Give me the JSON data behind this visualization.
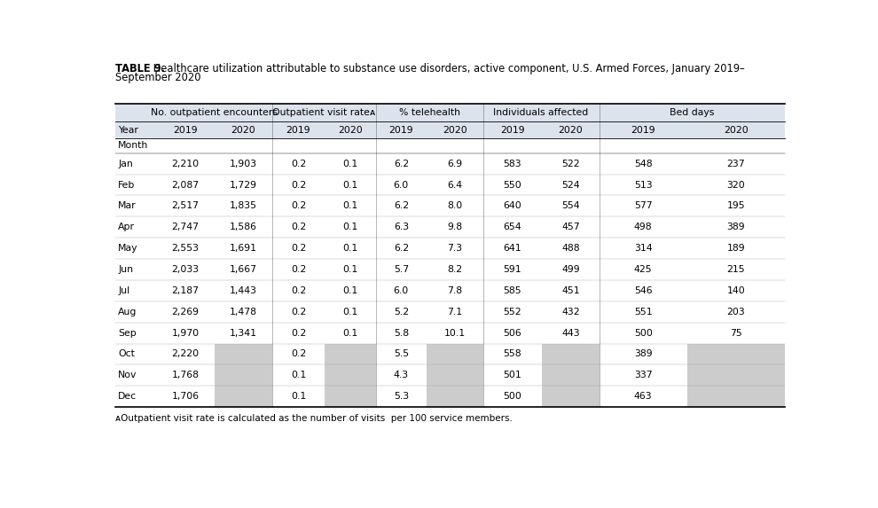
{
  "title_bold": "TABLE 9.",
  "title_rest": " Healthcare utilization attributable to substance use disorders, active component, U.S. Armed Forces, January 2019–September 2020",
  "footnote": "ᴀOutpatient visit rate is calculated as the number of visits  per 100 service members.",
  "col_groups": [
    {
      "label": "No. outpatient encounters",
      "span": 2
    },
    {
      "label": "Outpatient visit rateᴀ",
      "span": 2
    },
    {
      "label": "% telehealth",
      "span": 2
    },
    {
      "label": "Individuals affected",
      "span": 2
    },
    {
      "label": "Bed days",
      "span": 2
    }
  ],
  "year_headers": [
    "Year",
    "2019",
    "2020",
    "2019",
    "2020",
    "2019",
    "2020",
    "2019",
    "2020",
    "2019",
    "2020"
  ],
  "month_label": "Month",
  "rows": [
    {
      "month": "Jan",
      "data": [
        "2,210",
        "1,903",
        "0.2",
        "0.1",
        "6.2",
        "6.9",
        "583",
        "522",
        "548",
        "237"
      ]
    },
    {
      "month": "Feb",
      "data": [
        "2,087",
        "1,729",
        "0.2",
        "0.1",
        "6.0",
        "6.4",
        "550",
        "524",
        "513",
        "320"
      ]
    },
    {
      "month": "Mar",
      "data": [
        "2,517",
        "1,835",
        "0.2",
        "0.1",
        "6.2",
        "8.0",
        "640",
        "554",
        "577",
        "195"
      ]
    },
    {
      "month": "Apr",
      "data": [
        "2,747",
        "1,586",
        "0.2",
        "0.1",
        "6.3",
        "9.8",
        "654",
        "457",
        "498",
        "389"
      ]
    },
    {
      "month": "May",
      "data": [
        "2,553",
        "1,691",
        "0.2",
        "0.1",
        "6.2",
        "7.3",
        "641",
        "488",
        "314",
        "189"
      ]
    },
    {
      "month": "Jun",
      "data": [
        "2,033",
        "1,667",
        "0.2",
        "0.1",
        "5.7",
        "8.2",
        "591",
        "499",
        "425",
        "215"
      ]
    },
    {
      "month": "Jul",
      "data": [
        "2,187",
        "1,443",
        "0.2",
        "0.1",
        "6.0",
        "7.8",
        "585",
        "451",
        "546",
        "140"
      ]
    },
    {
      "month": "Aug",
      "data": [
        "2,269",
        "1,478",
        "0.2",
        "0.1",
        "5.2",
        "7.1",
        "552",
        "432",
        "551",
        "203"
      ]
    },
    {
      "month": "Sep",
      "data": [
        "1,970",
        "1,341",
        "0.2",
        "0.1",
        "5.8",
        "10.1",
        "506",
        "443",
        "500",
        "75"
      ]
    },
    {
      "month": "Oct",
      "data": [
        "2,220",
        null,
        "0.2",
        null,
        "5.5",
        null,
        "558",
        null,
        "389",
        null
      ]
    },
    {
      "month": "Nov",
      "data": [
        "1,768",
        null,
        "0.1",
        null,
        "4.3",
        null,
        "501",
        null,
        "337",
        null
      ]
    },
    {
      "month": "Dec",
      "data": [
        "1,706",
        null,
        "0.1",
        null,
        "5.3",
        null,
        "500",
        null,
        "463",
        null
      ]
    }
  ],
  "gray_color": "#cccccc",
  "header_bg": "#dde3ed",
  "text_color": "#000000",
  "fig_width": 9.9,
  "fig_height": 5.73,
  "dpi": 100
}
